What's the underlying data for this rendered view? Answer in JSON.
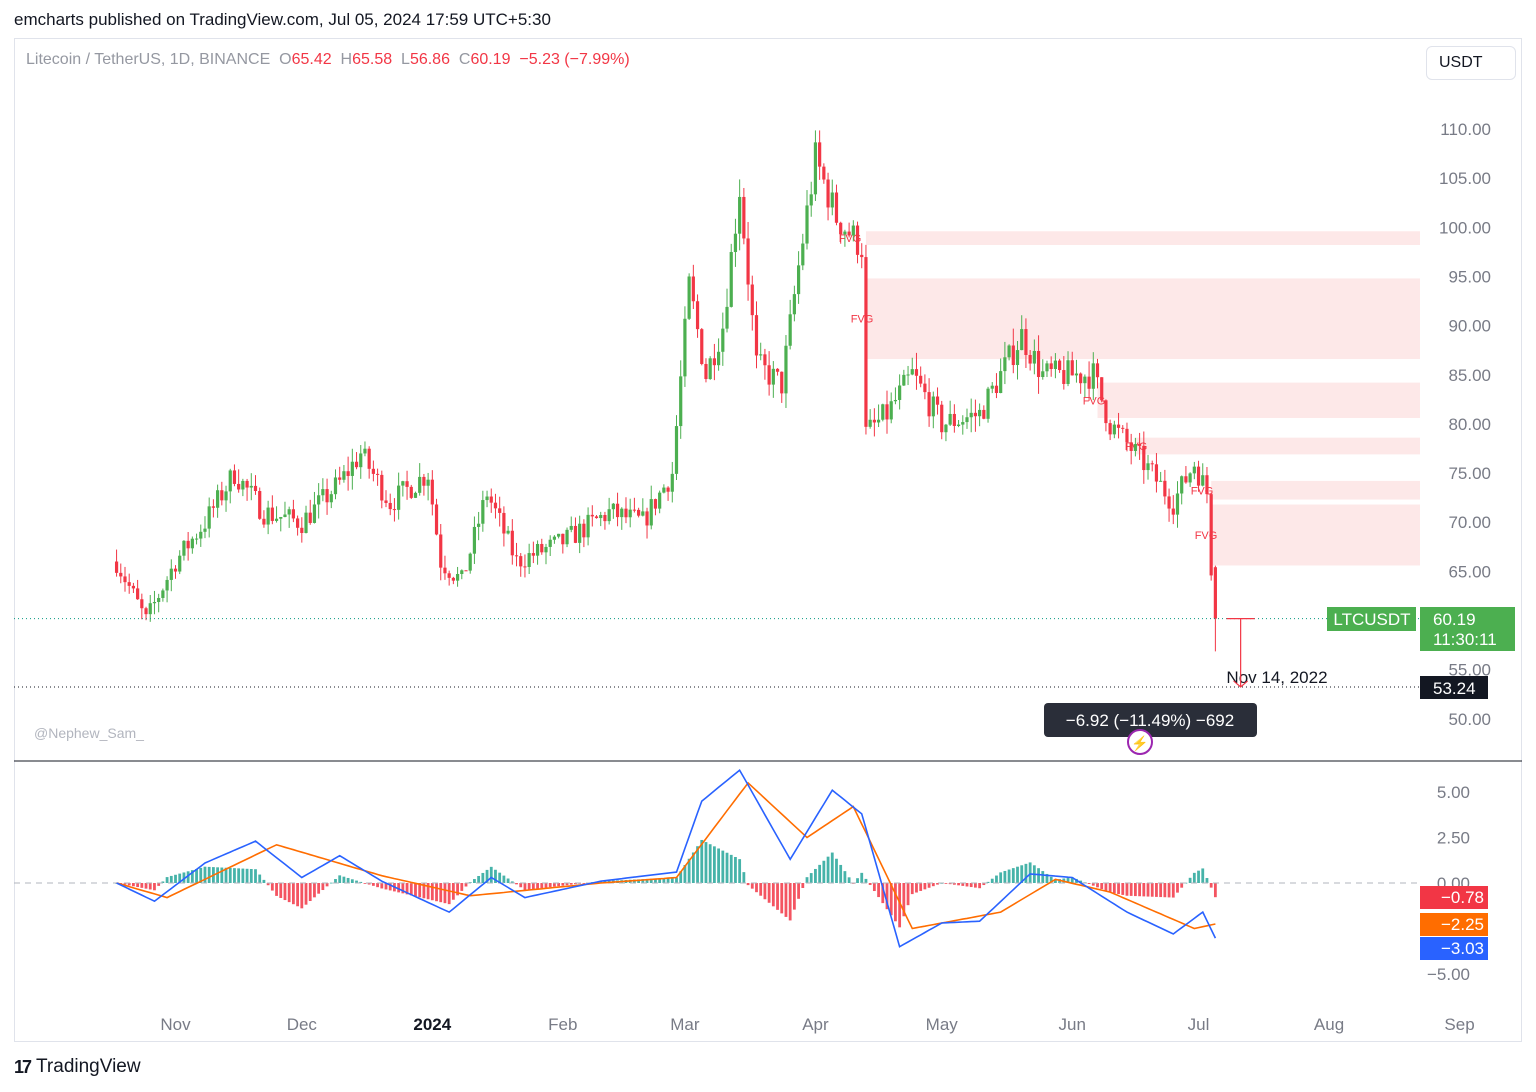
{
  "header": {
    "publisher": "emcharts published on TradingView.com, Jul 05, 2024 17:59 UTC+5:30"
  },
  "legend": {
    "symbol": "Litecoin / TetherUS, 1D, BINANCE",
    "o_label": "O",
    "o_value": "65.42",
    "h_label": "H",
    "h_value": "65.58",
    "l_label": "L",
    "l_value": "56.86",
    "c_label": "C",
    "c_value": "60.19",
    "change": "−5.23 (−7.99%)"
  },
  "currency_button": "USDT",
  "watermark": "@Nephew_Sam_",
  "brand": {
    "logo": "17",
    "name": "TradingView"
  },
  "colors": {
    "up": "#089981",
    "up_candle": "#4caf50",
    "down": "#f23645",
    "fvg": "#fde8e8",
    "macd": "#2962ff",
    "signal": "#ff6d00"
  },
  "chart_data": [
    {
      "type": "candlestick",
      "symbol": "LTCUSDT",
      "interval": "1D",
      "ylim": [
        47,
        113
      ],
      "y_ticks": [
        "110.00",
        "105.00",
        "100.00",
        "95.00",
        "90.00",
        "85.00",
        "80.00",
        "75.00",
        "70.00",
        "65.00",
        "55.00",
        "50.00"
      ],
      "x_ticks": [
        "Nov",
        "Dec",
        "2024",
        "Feb",
        "Mar",
        "Apr",
        "May",
        "Jun",
        "Jul",
        "Aug",
        "Sep"
      ],
      "price_keypoints": [
        {
          "date": "2023-10-18",
          "close": 66
        },
        {
          "date": "2023-10-25",
          "close": 60
        },
        {
          "date": "2023-11-01",
          "close": 66
        },
        {
          "date": "2023-11-08",
          "close": 70
        },
        {
          "date": "2023-11-15",
          "close": 75
        },
        {
          "date": "2023-11-22",
          "close": 71
        },
        {
          "date": "2023-12-01",
          "close": 70
        },
        {
          "date": "2023-12-10",
          "close": 74
        },
        {
          "date": "2023-12-15",
          "close": 77
        },
        {
          "date": "2023-12-22",
          "close": 72
        },
        {
          "date": "2023-12-31",
          "close": 75
        },
        {
          "date": "2024-01-03",
          "close": 66
        },
        {
          "date": "2024-01-08",
          "close": 64
        },
        {
          "date": "2024-01-14",
          "close": 73
        },
        {
          "date": "2024-01-21",
          "close": 66
        },
        {
          "date": "2024-02-01",
          "close": 68
        },
        {
          "date": "2024-02-12",
          "close": 71
        },
        {
          "date": "2024-02-20",
          "close": 70
        },
        {
          "date": "2024-02-27",
          "close": 75
        },
        {
          "date": "2024-03-02",
          "close": 94
        },
        {
          "date": "2024-03-06",
          "close": 85
        },
        {
          "date": "2024-03-10",
          "close": 90
        },
        {
          "date": "2024-03-14",
          "close": 104
        },
        {
          "date": "2024-03-18",
          "close": 86
        },
        {
          "date": "2024-03-24",
          "close": 84
        },
        {
          "date": "2024-03-28",
          "close": 96
        },
        {
          "date": "2024-04-01",
          "close": 107
        },
        {
          "date": "2024-04-06",
          "close": 101
        },
        {
          "date": "2024-04-12",
          "close": 98
        },
        {
          "date": "2024-04-13",
          "close": 79
        },
        {
          "date": "2024-04-18",
          "close": 81
        },
        {
          "date": "2024-04-24",
          "close": 85
        },
        {
          "date": "2024-05-01",
          "close": 80
        },
        {
          "date": "2024-05-10",
          "close": 81
        },
        {
          "date": "2024-05-20",
          "close": 89
        },
        {
          "date": "2024-05-25",
          "close": 85
        },
        {
          "date": "2024-06-06",
          "close": 85
        },
        {
          "date": "2024-06-10",
          "close": 80
        },
        {
          "date": "2024-06-18",
          "close": 76
        },
        {
          "date": "2024-06-25",
          "close": 72
        },
        {
          "date": "2024-06-30",
          "close": 76
        },
        {
          "date": "2024-07-03",
          "close": 73
        },
        {
          "date": "2024-07-04",
          "close": 65.42
        },
        {
          "date": "2024-07-05",
          "close": 60.19
        }
      ],
      "last_bar": {
        "open": 65.42,
        "high": 65.58,
        "low": 56.86,
        "close": 60.19
      },
      "price_label": {
        "symbol": "LTCUSDT",
        "value": "60.19",
        "countdown": "11:30:11"
      },
      "target_line": {
        "value": "53.24",
        "date_label": "Nov 14, 2022"
      },
      "measure": "−6.92 (−11.49%) −692",
      "fvg_zones": [
        {
          "label": "FVG",
          "low": 98.2,
          "high": 99.6,
          "from": "2024-04-13"
        },
        {
          "label": "FVG",
          "low": 86.6,
          "high": 94.8,
          "from": "2024-04-13"
        },
        {
          "label": "FVG",
          "low": 80.6,
          "high": 84.2,
          "from": "2024-06-07"
        },
        {
          "label": "FVG",
          "low": 76.9,
          "high": 78.6,
          "from": "2024-06-16"
        },
        {
          "label": "FVG",
          "low": 72.3,
          "high": 74.2,
          "from": "2024-07-04"
        },
        {
          "label": "FVG",
          "low": 65.6,
          "high": 71.8,
          "from": "2024-07-04"
        }
      ]
    },
    {
      "type": "macd",
      "ylim": [
        -6.5,
        6.5
      ],
      "y_ticks": [
        "5.00",
        "2.50",
        "0.00",
        "−5.00"
      ],
      "last_values": {
        "histogram": "−0.78",
        "signal": "−2.25",
        "macd": "−3.03"
      },
      "macd_keypoints": [
        {
          "date": "2023-10-18",
          "value": 0
        },
        {
          "date": "2023-10-27",
          "value": -1.0
        },
        {
          "date": "2023-11-08",
          "value": 1.1
        },
        {
          "date": "2023-11-20",
          "value": 2.3
        },
        {
          "date": "2023-12-01",
          "value": 0.3
        },
        {
          "date": "2023-12-10",
          "value": 1.5
        },
        {
          "date": "2023-12-20",
          "value": 0.1
        },
        {
          "date": "2024-01-05",
          "value": -1.6
        },
        {
          "date": "2024-01-15",
          "value": 0.3
        },
        {
          "date": "2024-01-23",
          "value": -0.8
        },
        {
          "date": "2024-02-10",
          "value": 0.1
        },
        {
          "date": "2024-02-28",
          "value": 0.6
        },
        {
          "date": "2024-03-05",
          "value": 4.5
        },
        {
          "date": "2024-03-14",
          "value": 6.2
        },
        {
          "date": "2024-03-26",
          "value": 1.3
        },
        {
          "date": "2024-04-05",
          "value": 5.1
        },
        {
          "date": "2024-04-12",
          "value": 3.8
        },
        {
          "date": "2024-04-21",
          "value": -3.5
        },
        {
          "date": "2024-05-01",
          "value": -2.2
        },
        {
          "date": "2024-05-10",
          "value": -2.1
        },
        {
          "date": "2024-05-22",
          "value": 0.5
        },
        {
          "date": "2024-06-01",
          "value": 0.3
        },
        {
          "date": "2024-06-14",
          "value": -1.6
        },
        {
          "date": "2024-06-25",
          "value": -2.8
        },
        {
          "date": "2024-07-02",
          "value": -1.6
        },
        {
          "date": "2024-07-05",
          "value": -3.03
        }
      ],
      "signal_keypoints": [
        {
          "date": "2023-10-18",
          "value": 0
        },
        {
          "date": "2023-10-30",
          "value": -0.8
        },
        {
          "date": "2023-11-25",
          "value": 2.1
        },
        {
          "date": "2023-12-20",
          "value": 0.4
        },
        {
          "date": "2024-01-10",
          "value": -0.7
        },
        {
          "date": "2024-02-10",
          "value": 0
        },
        {
          "date": "2024-02-28",
          "value": 0.3
        },
        {
          "date": "2024-03-16",
          "value": 5.5
        },
        {
          "date": "2024-03-30",
          "value": 2.5
        },
        {
          "date": "2024-04-10",
          "value": 4.2
        },
        {
          "date": "2024-04-24",
          "value": -2.5
        },
        {
          "date": "2024-05-15",
          "value": -1.6
        },
        {
          "date": "2024-05-28",
          "value": 0.2
        },
        {
          "date": "2024-06-10",
          "value": -0.5
        },
        {
          "date": "2024-06-30",
          "value": -2.5
        },
        {
          "date": "2024-07-05",
          "value": -2.25
        }
      ]
    }
  ]
}
